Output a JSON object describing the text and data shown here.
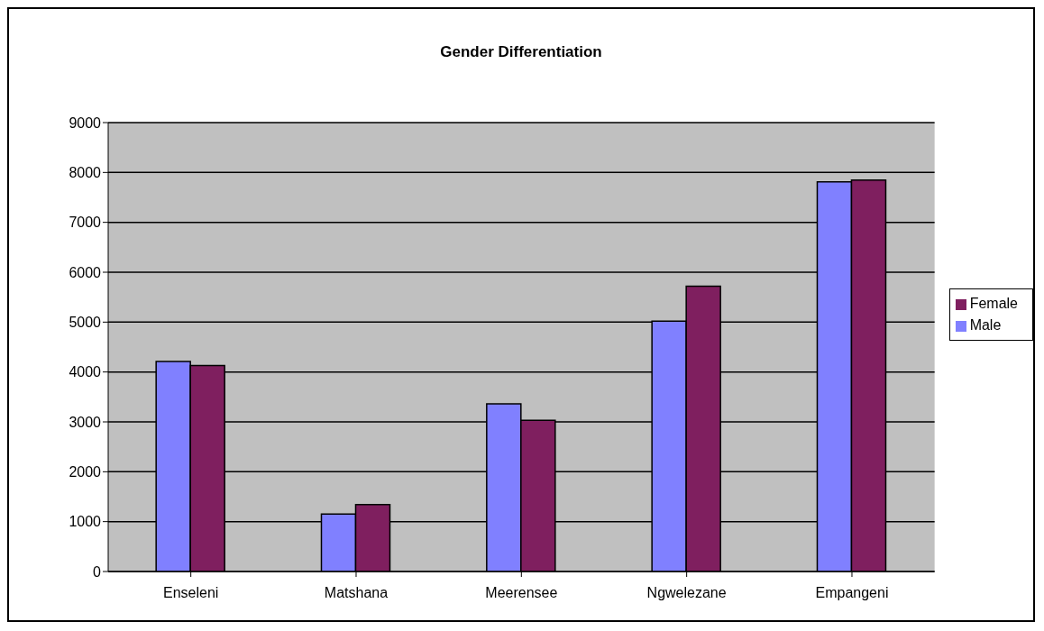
{
  "chart_data": {
    "type": "bar",
    "title": "Gender Differentiation",
    "categories": [
      "Enseleni",
      "Matshana",
      "Meerensee",
      "Ngwelezane",
      "Empangeni"
    ],
    "series": [
      {
        "name": "Male",
        "color": "#8080ff",
        "values": [
          4210,
          1150,
          3360,
          5020,
          7810
        ]
      },
      {
        "name": "Female",
        "color": "#7f1f5f",
        "values": [
          4130,
          1340,
          3030,
          5720,
          7850
        ]
      }
    ],
    "ylim": [
      0,
      9000
    ],
    "yticks": [
      0,
      1000,
      2000,
      3000,
      4000,
      5000,
      6000,
      7000,
      8000,
      9000
    ],
    "grid": "y",
    "legend": "right"
  }
}
